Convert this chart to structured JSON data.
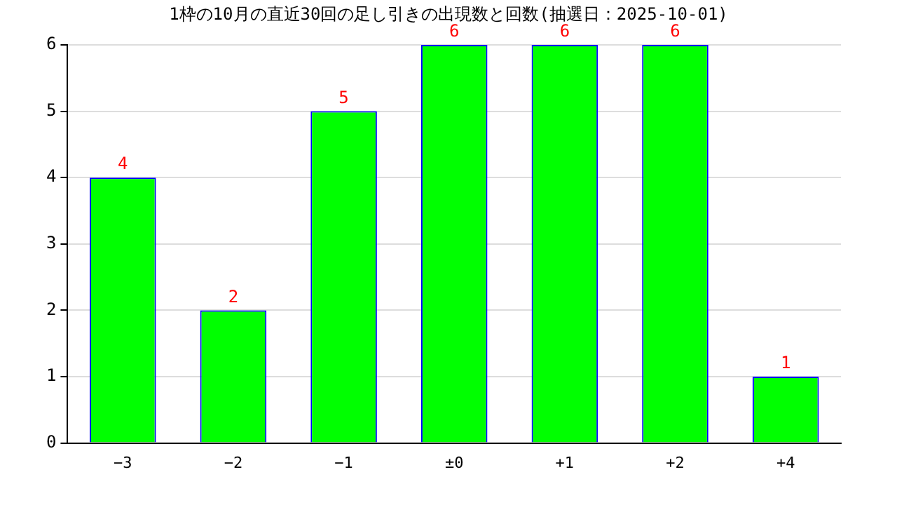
{
  "chart_data": {
    "type": "bar",
    "title": "1枠の10月の直近30回の足し引きの出現数と回数(抽選日：2025-10-01)",
    "categories": [
      "−3",
      "−2",
      "−1",
      "±0",
      "+1",
      "+2",
      "+4"
    ],
    "values": [
      4,
      2,
      5,
      6,
      6,
      6,
      1
    ],
    "color": "#00ff00",
    "ylim": [
      0,
      6
    ],
    "yticks": [
      0,
      1,
      2,
      3,
      4,
      5,
      6
    ],
    "grid": "y",
    "data_labels": true,
    "legend": false
  }
}
